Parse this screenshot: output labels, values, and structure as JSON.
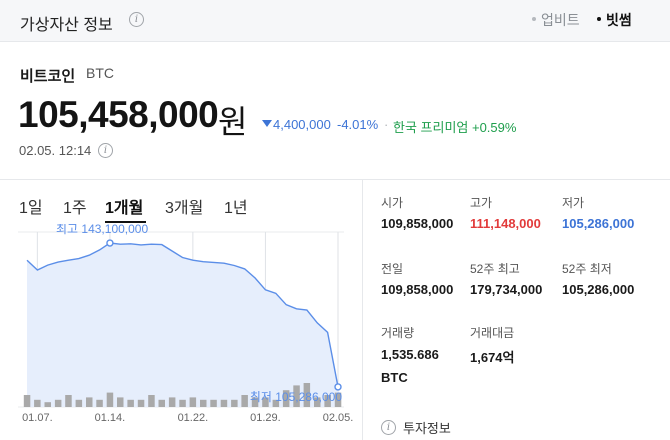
{
  "header": {
    "title": "가상자산 정보",
    "sources": [
      "업비트",
      "빗썸"
    ],
    "active_source": "빗썸"
  },
  "coin": {
    "name": "비트코인",
    "symbol": "BTC",
    "price": "105,458,000",
    "price_unit": "원",
    "change_direction": "down",
    "change_amount": "4,400,000",
    "change_percent": "-4.01%",
    "separator": "·",
    "premium": "한국 프리미엄 +0.59%",
    "timestamp": "02.05. 12:14"
  },
  "tabs": [
    "1일",
    "1주",
    "1개월",
    "3개월",
    "1년"
  ],
  "active_tab": "1개월",
  "chart_data": {
    "type": "area",
    "x": [
      "01.06",
      "01.07",
      "01.08",
      "01.09",
      "01.10",
      "01.11",
      "01.12",
      "01.13",
      "01.14",
      "01.15",
      "01.16",
      "01.17",
      "01.18",
      "01.19",
      "01.20",
      "01.21",
      "01.22",
      "01.23",
      "01.24",
      "01.25",
      "01.26",
      "01.27",
      "01.28",
      "01.29",
      "01.30",
      "01.31",
      "02.01",
      "02.02",
      "02.03",
      "02.04",
      "02.05"
    ],
    "values": [
      138600000,
      136000000,
      137300000,
      138100000,
      138600000,
      139000000,
      139900000,
      141300000,
      143100000,
      142800000,
      142900000,
      142600000,
      142800000,
      142700000,
      141000000,
      139300000,
      138600000,
      138200000,
      138000000,
      137800000,
      137200000,
      136300000,
      133900000,
      130800000,
      129900000,
      126900000,
      125800000,
      125500000,
      122100000,
      119600000,
      105286000
    ],
    "volume": [
      0.5,
      0.3,
      0.2,
      0.3,
      0.5,
      0.3,
      0.4,
      0.3,
      0.6,
      0.4,
      0.3,
      0.3,
      0.5,
      0.3,
      0.4,
      0.3,
      0.4,
      0.3,
      0.3,
      0.3,
      0.3,
      0.5,
      0.4,
      0.4,
      0.3,
      0.7,
      0.9,
      1.0,
      0.4,
      0.5,
      0.6
    ],
    "x_tick_labels": [
      "01.07.",
      "01.14.",
      "01.22.",
      "01.29.",
      "02.05."
    ],
    "annotations": {
      "high": "최고 143,100,000",
      "low": "최저 105,286,000"
    },
    "ylim": [
      100000000,
      146000000
    ],
    "grid": true,
    "line_color": "#5b8ee8",
    "fill_color": "#e6eefc",
    "volume_color": "#a9a9a9"
  },
  "stats": [
    {
      "label": "시가",
      "value": "109,858,000",
      "color": "default"
    },
    {
      "label": "고가",
      "value": "111,148,000",
      "color": "red"
    },
    {
      "label": "저가",
      "value": "105,286,000",
      "color": "blue"
    },
    {
      "label": "전일",
      "value": "109,858,000",
      "color": "default"
    },
    {
      "label": "52주 최고",
      "value": "179,734,000",
      "color": "default"
    },
    {
      "label": "52주 최저",
      "value": "105,286,000",
      "color": "default"
    },
    {
      "label": "거래량",
      "value": "1,535.686",
      "unit": "BTC",
      "color": "default"
    },
    {
      "label": "거래대금",
      "value": "1,674억",
      "color": "default"
    }
  ],
  "invest_info": {
    "icon": "info-icon",
    "label": "투자정보"
  },
  "colors": {
    "up": "#e23b3b",
    "down": "#3d74d6",
    "premium": "#1e9e4c"
  }
}
